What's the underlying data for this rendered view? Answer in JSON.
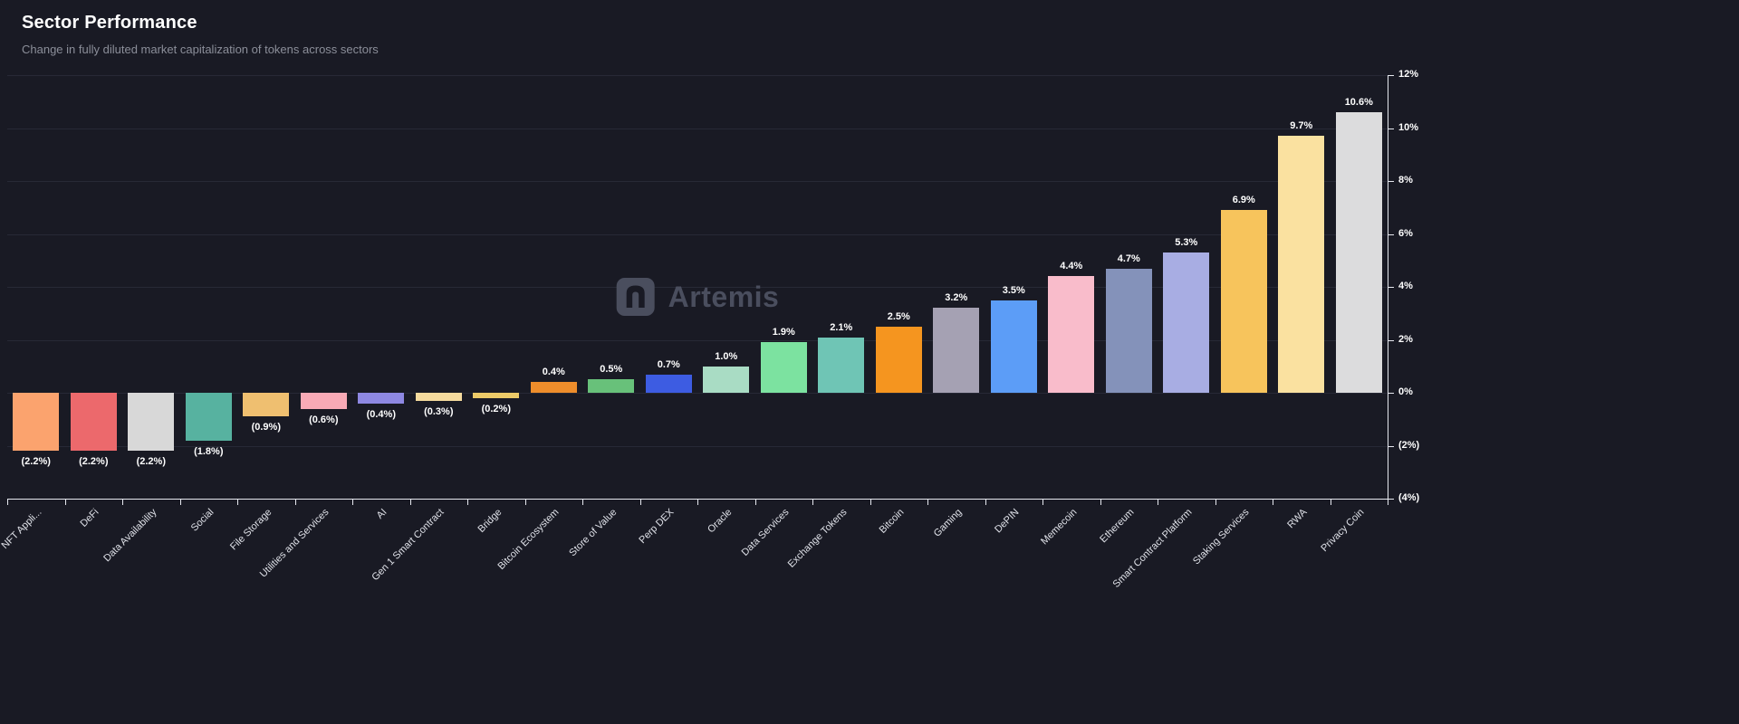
{
  "header": {
    "title": "Sector Performance",
    "subtitle": "Change in fully diluted market capitalization of tokens across sectors"
  },
  "watermark": {
    "text": "Artemis"
  },
  "chart_data": {
    "type": "bar",
    "title": "Sector Performance",
    "xlabel": "",
    "ylabel": "",
    "ylim": [
      -4,
      12
    ],
    "grid": true,
    "legend": false,
    "yticks": {
      "values": [
        12,
        10,
        8,
        6,
        4,
        2,
        0,
        -2,
        -4
      ],
      "labels": [
        "12%",
        "10%",
        "8%",
        "6%",
        "4%",
        "2%",
        "0%",
        "(2%)",
        "(4%)"
      ]
    },
    "categories": [
      "NFT Appli...",
      "DeFi",
      "Data Availability",
      "Social",
      "File Storage",
      "Utilities and Services",
      "AI",
      "Gen 1 Smart Contract",
      "Bridge",
      "Bitcoin Ecosystem",
      "Store of Value",
      "Perp DEX",
      "Oracle",
      "Data Services",
      "Exchange Tokens",
      "Bitcoin",
      "Gaming",
      "DePIN",
      "Memecoin",
      "Ethereum",
      "Smart Contract Platform",
      "Staking Services",
      "RWA",
      "Privacy Coin"
    ],
    "values": [
      -2.2,
      -2.2,
      -2.2,
      -1.8,
      -0.9,
      -0.6,
      -0.4,
      -0.3,
      -0.2,
      0.4,
      0.5,
      0.7,
      1.0,
      1.9,
      2.1,
      2.5,
      3.2,
      3.5,
      4.4,
      4.7,
      5.3,
      6.9,
      9.7,
      10.6
    ],
    "value_labels": [
      "(2.2%)",
      "(2.2%)",
      "(2.2%)",
      "(1.8%)",
      "(0.9%)",
      "(0.6%)",
      "(0.4%)",
      "(0.3%)",
      "(0.2%)",
      "0.4%",
      "0.5%",
      "0.7%",
      "1.0%",
      "1.9%",
      "2.1%",
      "2.5%",
      "3.2%",
      "3.5%",
      "4.4%",
      "4.7%",
      "5.3%",
      "6.9%",
      "9.7%",
      "10.6%"
    ],
    "bar_colors": [
      "#fba36e",
      "#ec696c",
      "#d8d8d8",
      "#57b2a0",
      "#efbf70",
      "#f8aab6",
      "#8e88e2",
      "#f5db9e",
      "#edca68",
      "#ee8d2b",
      "#68c17a",
      "#3d5ce2",
      "#a9dcc4",
      "#7ce2a0",
      "#6fc5b5",
      "#f5951f",
      "#a5a1b3",
      "#5c9df7",
      "#f9bccb",
      "#8492ba",
      "#a8ade3",
      "#f7c45c",
      "#fae1a0",
      "#dcdcdd"
    ]
  },
  "theme": {
    "background": "#191a24",
    "grid_color": "#272936",
    "axis_color": "#e7e9f0",
    "text_color": "#ffffff",
    "subtitle_color": "#8b8e99",
    "watermark_color": "#4a4e5e"
  }
}
